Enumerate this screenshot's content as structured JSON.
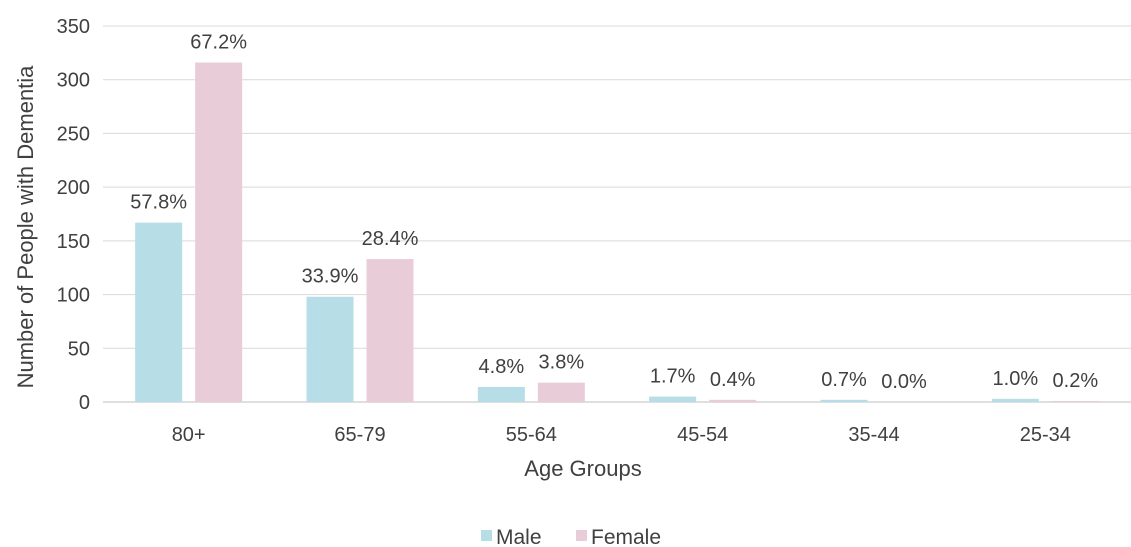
{
  "chart_data": {
    "type": "bar",
    "title": "",
    "xlabel": "Age Groups",
    "ylabel": "Number of People with Dementia",
    "ylim": [
      0,
      350
    ],
    "yticks": [
      0,
      50,
      100,
      150,
      200,
      250,
      300,
      350
    ],
    "categories": [
      "80+",
      "65-79",
      "55-64",
      "45-54",
      "35-44",
      "25-34"
    ],
    "grid": true,
    "legend_position": "bottom",
    "series": [
      {
        "name": "Male",
        "color": "#b7dde7",
        "values": [
          167,
          98,
          14,
          5,
          2,
          3
        ],
        "labels": [
          "57.8%",
          "33.9%",
          "4.8%",
          "1.7%",
          "0.7%",
          "1.0%"
        ]
      },
      {
        "name": "Female",
        "color": "#e8ccd7",
        "values": [
          316,
          133,
          18,
          2,
          0,
          1
        ],
        "labels": [
          "67.2%",
          "28.4%",
          "3.8%",
          "0.4%",
          "0.0%",
          "0.2%"
        ]
      }
    ]
  }
}
